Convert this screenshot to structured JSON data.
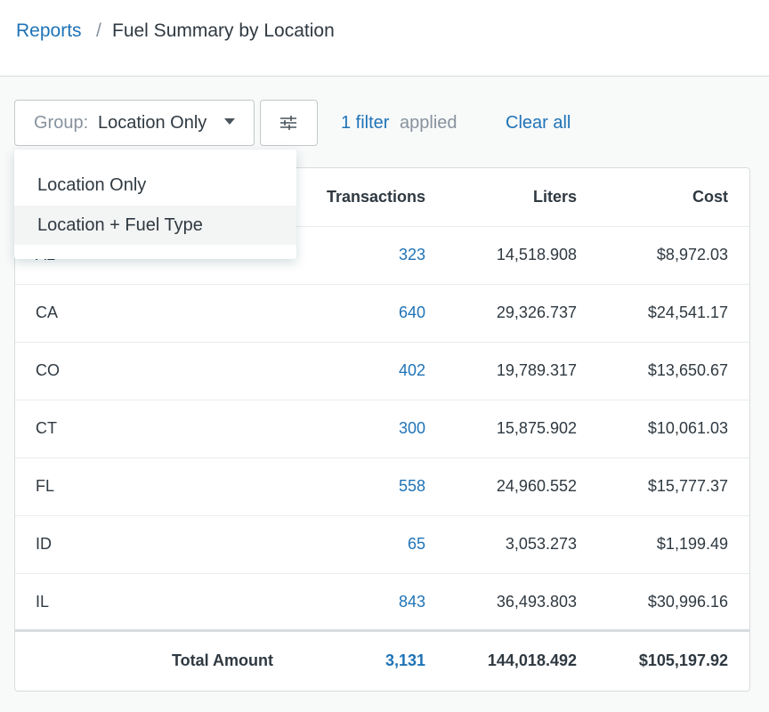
{
  "breadcrumb": {
    "parent": "Reports",
    "separator": "/",
    "current": "Fuel Summary by Location"
  },
  "toolbar": {
    "group_label": "Group:",
    "group_value": "Location Only",
    "filter_count": "1 filter",
    "filter_suffix": "applied",
    "clear": "Clear all"
  },
  "dropdown": {
    "options": [
      "Location Only",
      "Location + Fuel Type"
    ]
  },
  "table": {
    "header": {
      "transactions": "Transactions",
      "liters": "Liters",
      "cost": "Cost"
    },
    "rows": [
      [
        "AL",
        "323",
        "14,518.908",
        "$8,972.03"
      ],
      [
        "CA",
        "640",
        "29,326.737",
        "$24,541.17"
      ],
      [
        "CO",
        "402",
        "19,789.317",
        "$13,650.67"
      ],
      [
        "CT",
        "300",
        "15,875.902",
        "$10,061.03"
      ],
      [
        "FL",
        "558",
        "24,960.552",
        "$15,777.37"
      ],
      [
        "ID",
        "65",
        "3,053.273",
        "$1,199.49"
      ],
      [
        "IL",
        "843",
        "36,493.803",
        "$30,996.16"
      ]
    ],
    "total": {
      "label": "Total Amount",
      "transactions": "3,131",
      "liters": "144,018.492",
      "cost": "$105,197.92"
    }
  }
}
